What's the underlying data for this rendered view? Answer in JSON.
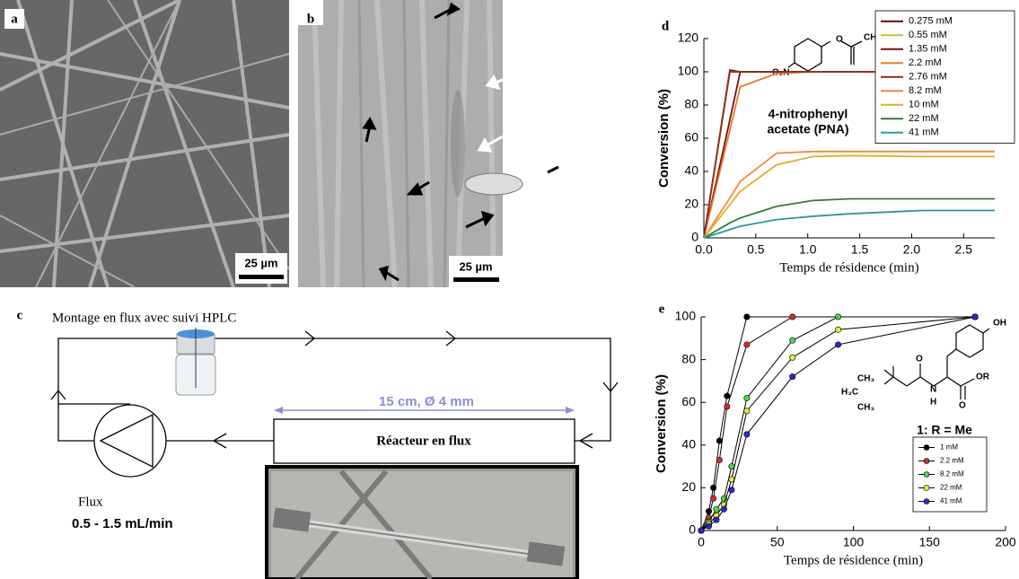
{
  "panels": {
    "a": {
      "label": "a",
      "scale_bar": "25 µm"
    },
    "b": {
      "label": "b",
      "scale_bar": "25 µm"
    },
    "c": {
      "label": "c",
      "title": "Montage en flux avec suivi HPLC",
      "reactor_dimensions": "15 cm, Ø 4 mm",
      "reactor": "Réacteur en flux",
      "flow_label": "Flux",
      "flow_rate": "0.5 - 1.5 mL/min"
    }
  },
  "chart_data": [
    {
      "type": "line",
      "panel_label": "d",
      "xlabel": "Temps de résidence (min)",
      "ylabel": "Conversion (%)",
      "annotations": [
        "4-nitrophenyl",
        "acetate (PNA)"
      ],
      "molecule_labels": [
        "O₂N",
        "O",
        "CH₃"
      ],
      "x": [
        0,
        0.25,
        0.35,
        0.7,
        1.05,
        1.4,
        2.1,
        2.8
      ],
      "series": [
        {
          "name": "0.275 mM",
          "color": "#5c0a0a",
          "values": [
            0,
            101,
            100,
            100,
            100,
            100,
            100,
            100
          ]
        },
        {
          "name": "0.55 mM",
          "color": "#c5c13a",
          "values": [
            0,
            100,
            100,
            100,
            100,
            100,
            100,
            100
          ]
        },
        {
          "name": "1.35 mM",
          "color": "#7a1212",
          "values": [
            0,
            71,
            100,
            100,
            100,
            100,
            100,
            100
          ]
        },
        {
          "name": "2.2 mM",
          "color": "#e8782c",
          "values": [
            0,
            65,
            91,
            99,
            100,
            100,
            100,
            100
          ]
        },
        {
          "name": "2.76 mM",
          "color": "#8f2a1a",
          "values": [
            0,
            100,
            100,
            100,
            100,
            100,
            100,
            100
          ]
        },
        {
          "name": "8.2 mM",
          "color": "#f08a3c",
          "values": [
            0,
            24,
            34,
            51,
            52,
            52,
            52,
            52
          ]
        },
        {
          "name": "10 mM",
          "color": "#dcae2a",
          "values": [
            0,
            20,
            28,
            44,
            49,
            49.5,
            49,
            49
          ]
        },
        {
          "name": "22 mM",
          "color": "#2e7d32",
          "values": [
            0,
            9,
            12,
            19,
            22.5,
            23.5,
            23.5,
            23.5
          ]
        },
        {
          "name": "41 mM",
          "color": "#2a9a9a",
          "values": [
            0,
            5,
            7,
            11,
            13,
            14.5,
            16.5,
            16.5
          ]
        }
      ],
      "xlim": [
        0,
        2.8
      ],
      "ylim": [
        0,
        120
      ],
      "xticks": [
        {
          "value": 0,
          "label": "0.0"
        },
        0.5,
        {
          "value": 1,
          "label": "1.0"
        },
        1.5,
        {
          "value": 2,
          "label": "2.0"
        },
        2.5
      ],
      "yticks": [
        0,
        20,
        40,
        60,
        80,
        100,
        120
      ],
      "legend": "upper right",
      "markers": false
    },
    {
      "type": "line",
      "panel_label": "e",
      "xlabel": "Temps de résidence (min)",
      "ylabel": "Conversion (%)",
      "annotations": [
        "1: R = Me"
      ],
      "molecule_labels": [
        "OH",
        "CH₃",
        "H₃C",
        "CH₃",
        "O",
        "N",
        "H",
        "O",
        "OR"
      ],
      "series": [
        {
          "name": "1 mM",
          "color": "#000000",
          "x": [
            0,
            5,
            8,
            12,
            17,
            30,
            180
          ],
          "values": [
            0,
            9,
            20,
            42,
            63,
            100,
            100
          ]
        },
        {
          "name": "2.2 mM",
          "color": "#d32f2f",
          "x": [
            0,
            5,
            8,
            12,
            17,
            30,
            60,
            180
          ],
          "values": [
            0,
            6,
            15,
            33,
            58,
            87,
            100,
            100
          ]
        },
        {
          "name": "8.2 mM",
          "color": "#4cd44c",
          "x": [
            0,
            5,
            10,
            15,
            20,
            30,
            60,
            90,
            180
          ],
          "values": [
            0,
            4,
            10,
            15,
            30,
            62,
            89,
            100,
            100
          ]
        },
        {
          "name": "22 mM",
          "color": "#e8e83a",
          "x": [
            0,
            5,
            10,
            15,
            20,
            30,
            60,
            90,
            180
          ],
          "values": [
            0,
            3,
            7,
            12,
            24,
            56,
            81,
            94,
            100
          ]
        },
        {
          "name": "41 mM",
          "color": "#2a2ad0",
          "x": [
            0,
            5,
            10,
            15,
            20,
            30,
            60,
            90,
            180
          ],
          "values": [
            0,
            2,
            5,
            10,
            19,
            45,
            72,
            87,
            100
          ]
        }
      ],
      "xlim": [
        0,
        200
      ],
      "ylim": [
        0,
        100
      ],
      "xticks": [
        0,
        50,
        100,
        150,
        200
      ],
      "yticks": [
        0,
        20,
        40,
        60,
        80,
        100
      ],
      "legend": "lower right",
      "markers": true
    }
  ]
}
